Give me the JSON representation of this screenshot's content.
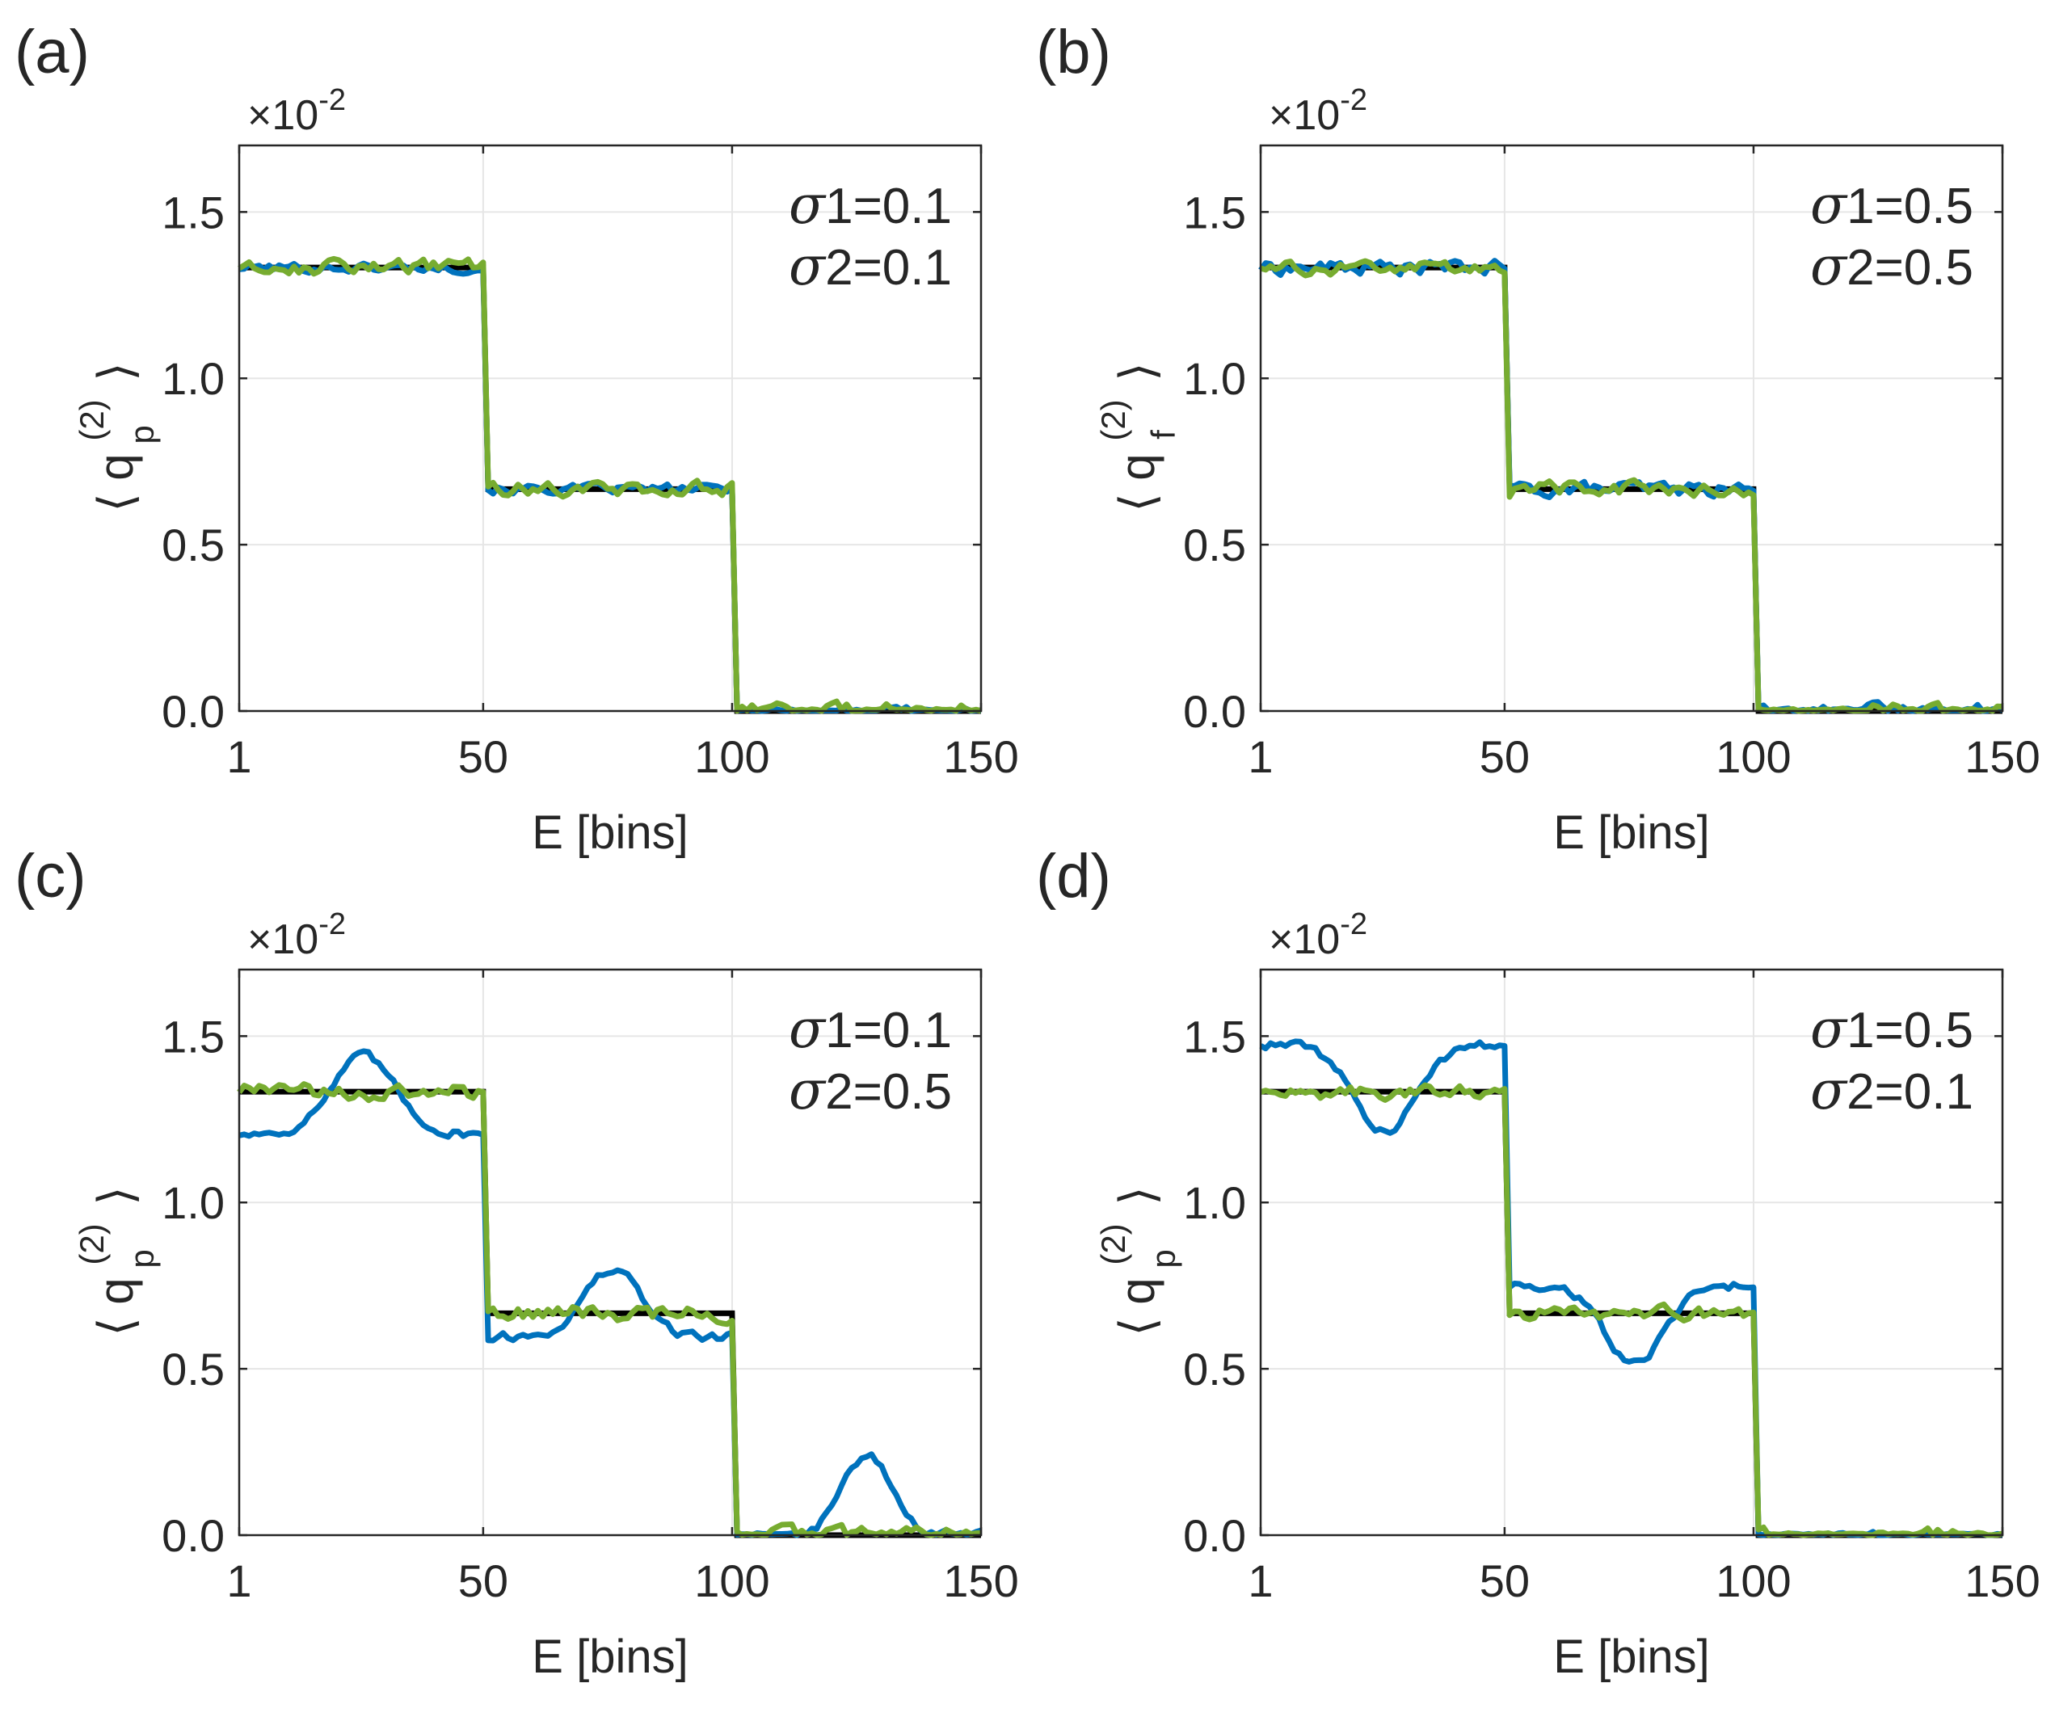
{
  "colors": {
    "black": "#000000",
    "blue": "#0072BD",
    "green": "#77AC30",
    "grid": "#e6e6e6",
    "axis": "#262626"
  },
  "chart_data": [
    {
      "panel": "(a)",
      "type": "line",
      "exponent_base": "×10",
      "exponent_power": "-2",
      "ylabel": {
        "q": "q",
        "sub": "p",
        "sup": "(2)"
      },
      "xlabel": "E [bins]",
      "xlim": [
        1,
        150
      ],
      "ylim": [
        0,
        1.7
      ],
      "xticks": [
        "1",
        "50",
        "100",
        "150"
      ],
      "yticks": [
        "0.0",
        "0.5",
        "1.0",
        "1.5"
      ],
      "sigma1": "=0.1",
      "sigma2": "=0.1",
      "levels": [
        1.333,
        0.667,
        0.0
      ],
      "blue": {
        "dev1": 0,
        "dev2": 0,
        "dev3": 0,
        "noise": 0.012
      },
      "green": {
        "noise": 0.018
      }
    },
    {
      "panel": "(b)",
      "type": "line",
      "exponent_base": "×10",
      "exponent_power": "-2",
      "ylabel": {
        "q": "q",
        "sub": "f",
        "sup": "(2)"
      },
      "xlabel": "E [bins]",
      "xlim": [
        1,
        150
      ],
      "ylim": [
        0,
        1.7
      ],
      "xticks": [
        "1",
        "50",
        "100",
        "150"
      ],
      "yticks": [
        "0.0",
        "0.5",
        "1.0",
        "1.5"
      ],
      "sigma1": "=0.5",
      "sigma2": "=0.5",
      "levels": [
        1.333,
        0.667,
        0.0
      ],
      "blue": {
        "dev1": 0,
        "dev2": 0,
        "dev3": 0,
        "noise": 0.018
      },
      "green": {
        "noise": 0.018
      }
    },
    {
      "panel": "(c)",
      "type": "line",
      "exponent_base": "×10",
      "exponent_power": "-2",
      "ylabel": {
        "q": "q",
        "sub": "p",
        "sup": "(2)"
      },
      "xlabel": "E [bins]",
      "xlim": [
        1,
        150
      ],
      "ylim": [
        0,
        1.7
      ],
      "xticks": [
        "1",
        "50",
        "100",
        "150"
      ],
      "yticks": [
        "0.0",
        "0.5",
        "1.0",
        "1.5"
      ],
      "sigma1": "=0.1",
      "sigma2": "=0.5",
      "levels": [
        1.333,
        0.667,
        0.0
      ],
      "blue": {
        "dev1": 0.23,
        "dev2": 0.2,
        "dev3": 0.24,
        "noise": 0.012
      },
      "green": {
        "noise": 0.02
      }
    },
    {
      "panel": "(d)",
      "type": "line",
      "exponent_base": "×10",
      "exponent_power": "-2",
      "ylabel": {
        "q": "q",
        "sub": "p",
        "sup": "(2)"
      },
      "xlabel": "E [bins]",
      "xlim": [
        1,
        150
      ],
      "ylim": [
        0,
        1.7
      ],
      "xticks": [
        "1",
        "50",
        "100",
        "150"
      ],
      "yticks": [
        "0.0",
        "0.5",
        "1.0",
        "1.5"
      ],
      "sigma1": "=0.5",
      "sigma2": "=0.1",
      "levels": [
        1.333,
        0.667,
        0.0
      ],
      "blue": {
        "dev1": -0.26,
        "dev2": -0.24,
        "dev3": 0,
        "noise": 0.012
      },
      "green": {
        "noise": 0.018
      }
    }
  ]
}
